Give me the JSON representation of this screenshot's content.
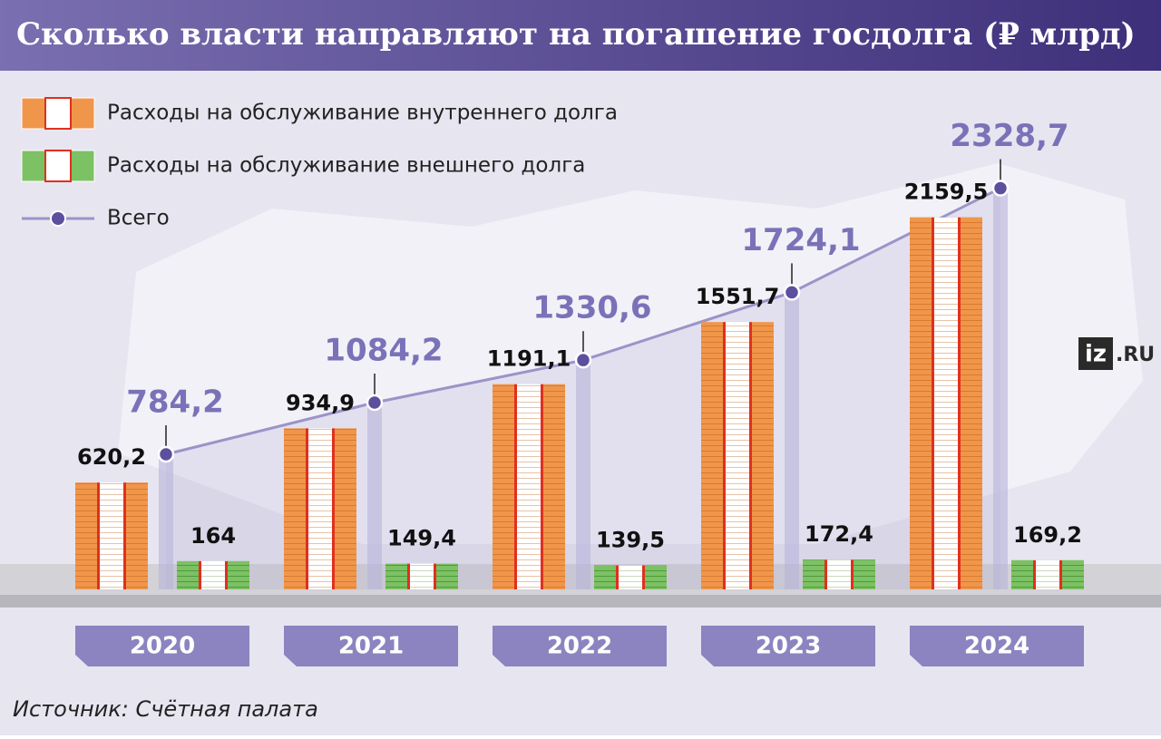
{
  "chart_data": {
    "type": "bar",
    "title": "Сколько власти направляют на погашение госдолга (₽ млрд)",
    "categories": [
      "2020",
      "2021",
      "2022",
      "2023",
      "2024"
    ],
    "series": [
      {
        "name": "Расходы на обслуживание внутреннего долга",
        "color": "#f0964b",
        "values": [
          620.2,
          934.9,
          1191.1,
          1551.7,
          2159.5
        ],
        "value_labels": [
          "620,2",
          "934,9",
          "1191,1",
          "1551,7",
          "2159,5"
        ]
      },
      {
        "name": "Расходы на обслуживание внешнего долга",
        "color": "#7cc163",
        "values": [
          164,
          149.4,
          139.5,
          172.4,
          169.2
        ],
        "value_labels": [
          "164",
          "149,4",
          "139,5",
          "172,4",
          "169,2"
        ]
      },
      {
        "name": "Всего",
        "type": "line",
        "color": "#9a94c9",
        "values": [
          784.2,
          1084.2,
          1330.6,
          1724.1,
          2328.7
        ],
        "value_labels": [
          "784,2",
          "1084,2",
          "1330,6",
          "1724,1",
          "2328,7"
        ]
      }
    ],
    "source": "Источник: Счётная палата",
    "brand_mark": "iz",
    "brand_domain": ".RU"
  }
}
